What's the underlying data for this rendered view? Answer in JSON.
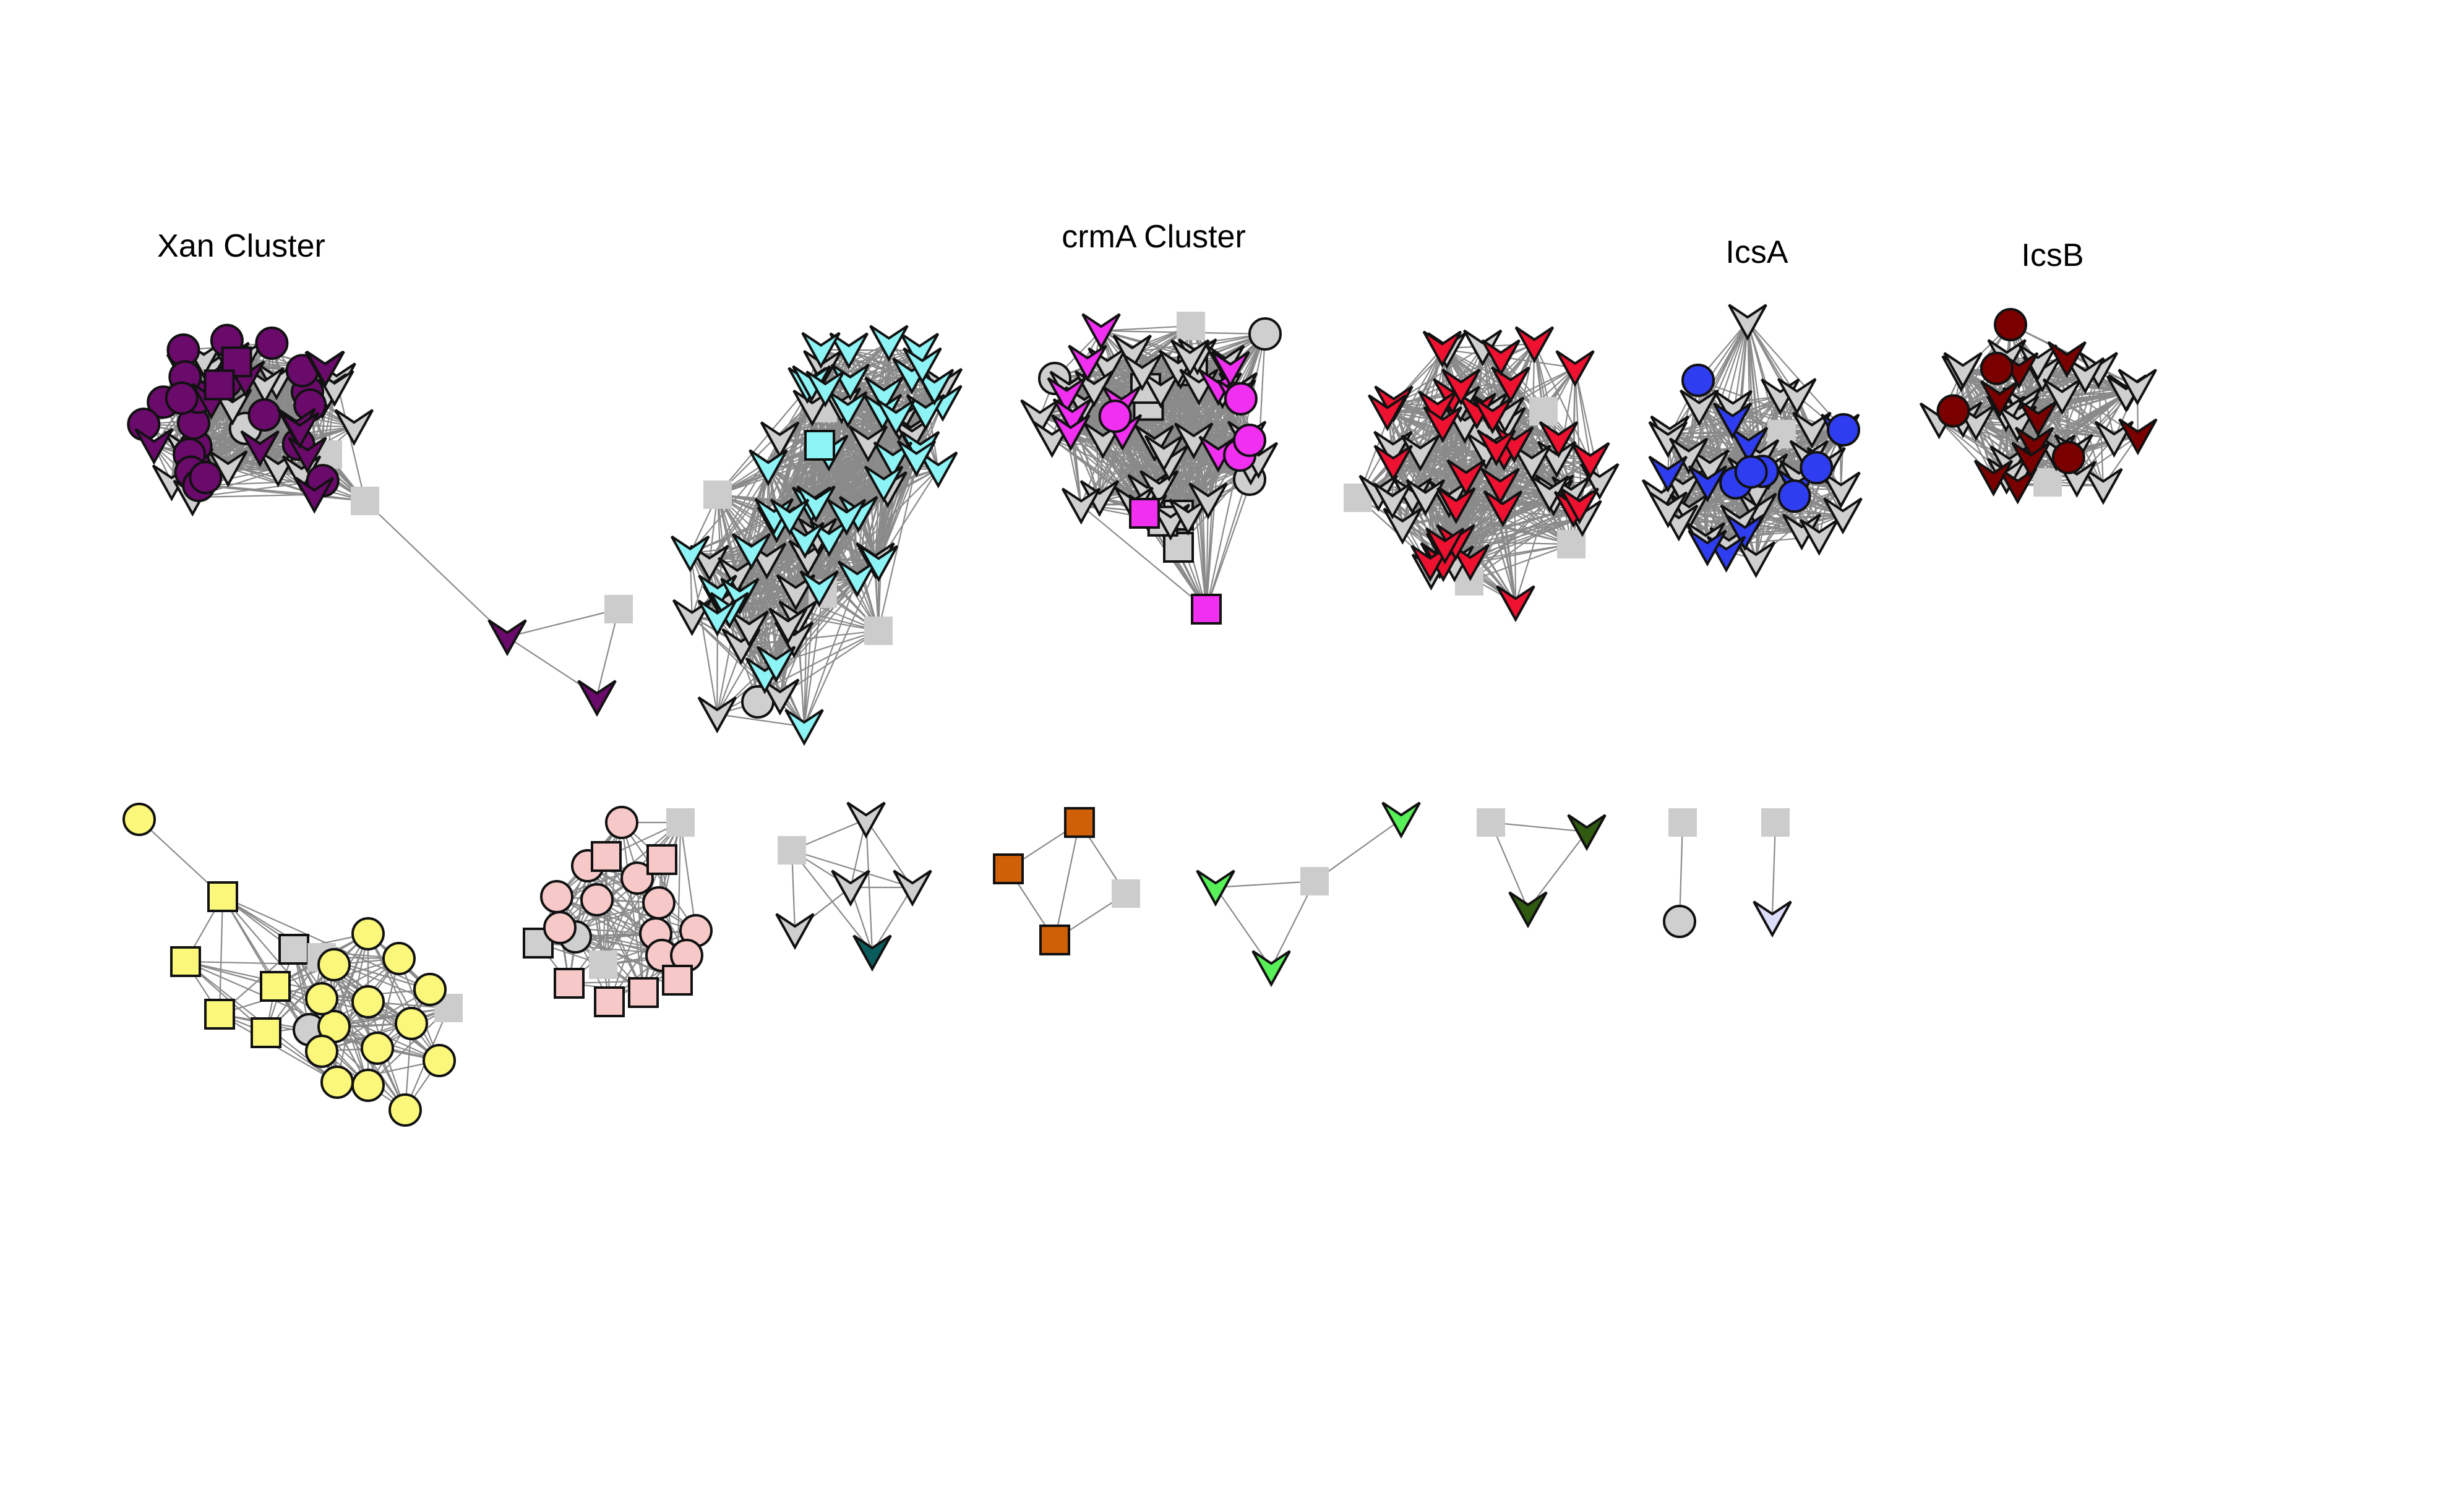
{
  "labels": {
    "xan": "Xan Cluster",
    "crma": "crmA Cluster",
    "icsa": "IcsA",
    "icsb": "IcsB"
  },
  "colors": {
    "grey": "#cfcfcf",
    "lightgrey_square": "#cccccc",
    "purple": "#6a0a6a",
    "cyan": "#8ef3f5",
    "magenta": "#f02ff0",
    "red": "#ee1130",
    "blue": "#2f3df0",
    "darkred": "#7a0000",
    "yellow": "#fbf77a",
    "pink": "#f7c8c8",
    "teal": "#0a5c5c",
    "orange": "#cf6008",
    "green": "#58f058",
    "darkgreen": "#2f5a10",
    "lavender": "#dcdcfb"
  },
  "clusters": [
    {
      "id": "xan",
      "label_key": "xan",
      "colors": [
        "purple",
        "grey"
      ],
      "shapes": [
        "v",
        "circle",
        "square"
      ]
    },
    {
      "id": "xan-tail",
      "colors": [
        "purple",
        "grey"
      ],
      "shapes": [
        "v",
        "square"
      ]
    },
    {
      "id": "cyan",
      "colors": [
        "cyan",
        "grey"
      ],
      "shapes": [
        "v",
        "square",
        "circle"
      ]
    },
    {
      "id": "crma",
      "label_key": "crma",
      "colors": [
        "magenta",
        "grey"
      ],
      "shapes": [
        "v",
        "circle",
        "square"
      ]
    },
    {
      "id": "red",
      "colors": [
        "red",
        "grey"
      ],
      "shapes": [
        "v",
        "square"
      ]
    },
    {
      "id": "icsa",
      "label_key": "icsa",
      "colors": [
        "blue",
        "grey"
      ],
      "shapes": [
        "v",
        "circle",
        "square"
      ]
    },
    {
      "id": "icsb",
      "label_key": "icsb",
      "colors": [
        "darkred",
        "grey"
      ],
      "shapes": [
        "v",
        "circle",
        "square"
      ]
    },
    {
      "id": "yellow",
      "colors": [
        "yellow",
        "grey"
      ],
      "shapes": [
        "circle",
        "square"
      ]
    },
    {
      "id": "pink",
      "colors": [
        "pink",
        "grey"
      ],
      "shapes": [
        "circle",
        "square"
      ]
    },
    {
      "id": "teal",
      "colors": [
        "teal",
        "grey"
      ],
      "shapes": [
        "v",
        "square"
      ]
    },
    {
      "id": "orange",
      "colors": [
        "orange",
        "grey"
      ],
      "shapes": [
        "square"
      ]
    },
    {
      "id": "green",
      "colors": [
        "green",
        "grey"
      ],
      "shapes": [
        "v",
        "square"
      ]
    },
    {
      "id": "darkgreen",
      "colors": [
        "darkgreen",
        "grey"
      ],
      "shapes": [
        "v",
        "square"
      ]
    },
    {
      "id": "pair-circle",
      "colors": [
        "grey"
      ],
      "shapes": [
        "circle",
        "square"
      ]
    },
    {
      "id": "pair-lavender",
      "colors": [
        "lavender",
        "grey"
      ],
      "shapes": [
        "v",
        "square"
      ]
    }
  ]
}
